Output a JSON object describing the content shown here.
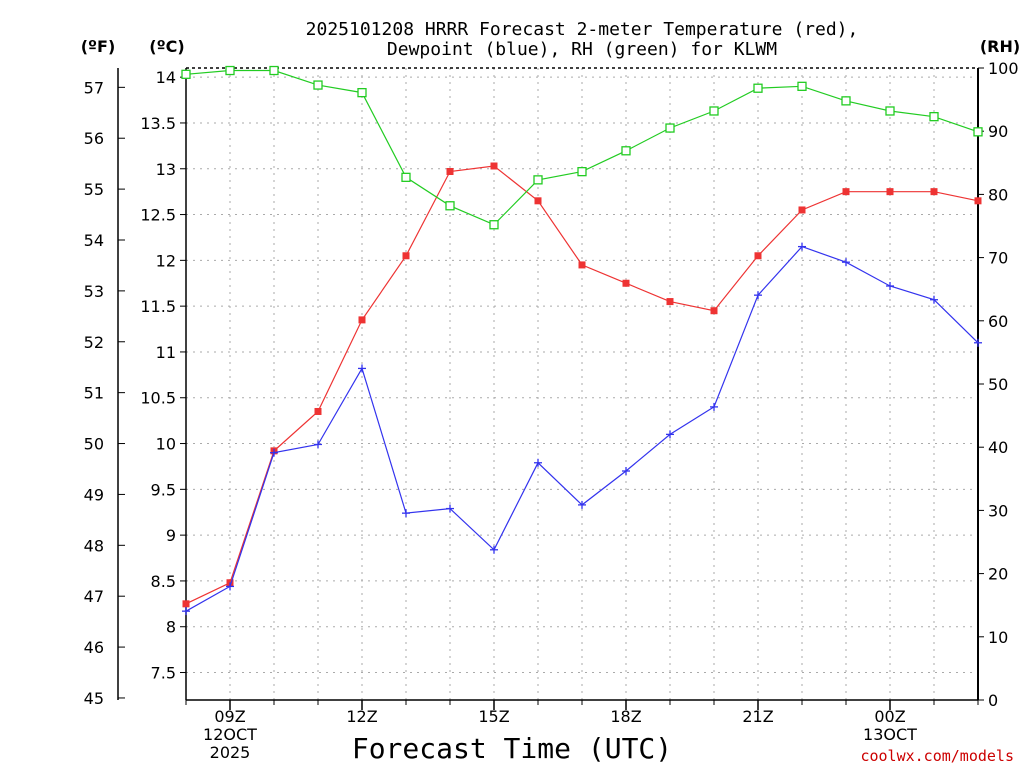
{
  "chart_data": {
    "type": "line",
    "title_line1": "2025101208 HRRR Forecast 2-meter Temperature (red),",
    "title_line2": "Dewpoint (blue), RH (green) for KLWM",
    "xlabel": "Forecast Time (UTC)",
    "left_outer_unit": "(ºF)",
    "left_inner_unit": "(ºC)",
    "right_unit": "(RH)",
    "credit": "coolwx.com/models",
    "x_hours": [
      8,
      9,
      10,
      11,
      12,
      13,
      14,
      15,
      16,
      17,
      18,
      19,
      20,
      21,
      22,
      23,
      24,
      25,
      26
    ],
    "x_ticks": [
      {
        "hour": 9,
        "lines": [
          "09Z",
          "12OCT",
          "2025"
        ]
      },
      {
        "hour": 12,
        "lines": [
          "12Z"
        ]
      },
      {
        "hour": 15,
        "lines": [
          "15Z"
        ]
      },
      {
        "hour": 18,
        "lines": [
          "18Z"
        ]
      },
      {
        "hour": 21,
        "lines": [
          "21Z"
        ]
      },
      {
        "hour": 24,
        "lines": [
          "00Z",
          "13OCT"
        ]
      }
    ],
    "xlim": [
      8,
      26
    ],
    "celsius_ylim": [
      7.2,
      14.1
    ],
    "celsius_ticks": [
      "7.5",
      "8",
      "8.5",
      "9",
      "9.5",
      "10",
      "10.5",
      "11",
      "11.5",
      "12",
      "12.5",
      "13",
      "13.5",
      "14"
    ],
    "fahrenheit_ticks": [
      "45",
      "46",
      "47",
      "48",
      "49",
      "50",
      "51",
      "52",
      "53",
      "54",
      "55",
      "56",
      "57"
    ],
    "rh_ylim": [
      0,
      100
    ],
    "rh_ticks": [
      "0",
      "10",
      "20",
      "30",
      "40",
      "50",
      "60",
      "70",
      "80",
      "90",
      "100"
    ],
    "series": [
      {
        "name": "Temperature",
        "axis": "celsius",
        "color": "#ee3333",
        "marker": "filled-square",
        "values": [
          8.25,
          8.48,
          9.92,
          10.35,
          11.35,
          12.05,
          12.97,
          13.03,
          12.65,
          11.95,
          11.75,
          11.55,
          11.45,
          12.05,
          12.55,
          12.75,
          12.75,
          12.75,
          12.65
        ]
      },
      {
        "name": "Dewpoint",
        "axis": "celsius",
        "color": "#3333ee",
        "marker": "plus",
        "values": [
          8.17,
          8.44,
          9.9,
          9.99,
          10.82,
          9.24,
          9.29,
          8.84,
          9.79,
          9.33,
          9.7,
          10.1,
          10.4,
          11.62,
          12.15,
          11.98,
          11.72,
          11.57,
          11.1
        ]
      },
      {
        "name": "RH",
        "axis": "rh",
        "color": "#22cc22",
        "marker": "open-square",
        "values": [
          99,
          99.6,
          99.6,
          97.3,
          96.1,
          82.7,
          78.2,
          75.2,
          82.3,
          83.6,
          86.9,
          90.5,
          93.2,
          96.8,
          97.1,
          94.8,
          93.2,
          92.3,
          89.9
        ]
      }
    ],
    "grid": true
  }
}
